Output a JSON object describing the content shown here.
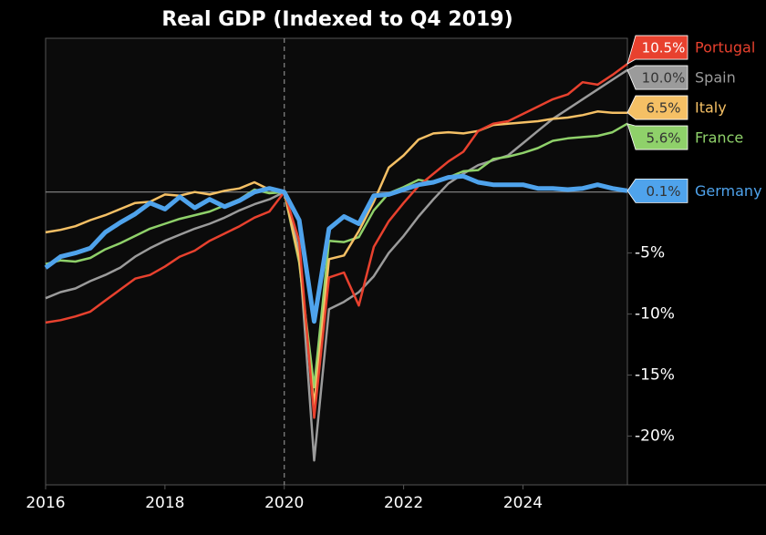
{
  "chart_data": {
    "type": "line",
    "title": "Real GDP (Indexed to Q4 2019)",
    "x": [
      2016,
      2016.25,
      2016.5,
      2016.75,
      2017,
      2017.25,
      2017.5,
      2017.75,
      2018,
      2018.25,
      2018.5,
      2018.75,
      2019,
      2019.25,
      2019.5,
      2019.75,
      2020,
      2020.25,
      2020.5,
      2020.75,
      2021,
      2021.25,
      2021.5,
      2021.75,
      2022,
      2022.25,
      2022.5,
      2022.75,
      2023,
      2023.25,
      2023.5,
      2023.75,
      2024,
      2024.25,
      2024.5,
      2024.75,
      2025,
      2025.25,
      2025.5,
      2025.75
    ],
    "xlim": [
      2016,
      2025.75
    ],
    "xticks": [
      2016,
      2018,
      2020,
      2022,
      2024
    ],
    "ylim": [
      -24,
      12.6
    ],
    "yticks": [
      {
        "value": -5,
        "label": "-5%"
      },
      {
        "value": -10,
        "label": "-10%"
      },
      {
        "value": -15,
        "label": "-15%"
      },
      {
        "value": -20,
        "label": "-20%"
      }
    ],
    "reference_y": 0,
    "reference_x": 2020,
    "series": [
      {
        "name": "Spain",
        "color": "#9b9b9b",
        "end_label": "10.0%",
        "values": [
          -8.7,
          -8.2,
          -7.9,
          -7.3,
          -6.8,
          -6.2,
          -5.3,
          -4.6,
          -4.0,
          -3.5,
          -3.0,
          -2.6,
          -2.1,
          -1.5,
          -1.0,
          -0.6,
          0,
          -4.8,
          -22.0,
          -9.6,
          -9.0,
          -8.2,
          -6.9,
          -5.0,
          -3.6,
          -2.0,
          -0.6,
          0.7,
          1.5,
          2.2,
          2.6,
          3.0,
          4.0,
          5.0,
          6.0,
          6.8,
          7.6,
          8.4,
          9.2,
          10.0
        ]
      },
      {
        "name": "France",
        "color": "#8fd16a",
        "end_label": "5.6%",
        "values": [
          -5.9,
          -5.6,
          -5.7,
          -5.4,
          -4.7,
          -4.2,
          -3.6,
          -3.0,
          -2.6,
          -2.2,
          -1.9,
          -1.6,
          -1.1,
          -0.6,
          0.2,
          -0.1,
          0,
          -5.8,
          -16.0,
          -4.0,
          -4.1,
          -3.7,
          -1.5,
          -0.1,
          0.4,
          1.0,
          0.8,
          1.2,
          1.7,
          1.8,
          2.7,
          2.9,
          3.2,
          3.6,
          4.2,
          4.4,
          4.5,
          4.6,
          4.9,
          5.6
        ]
      },
      {
        "name": "Italy",
        "color": "#f5c065",
        "end_label": "6.5%",
        "values": [
          -3.3,
          -3.1,
          -2.8,
          -2.3,
          -1.9,
          -1.4,
          -0.9,
          -0.8,
          -0.2,
          -0.3,
          0.0,
          -0.2,
          0.1,
          0.3,
          0.8,
          0.2,
          0,
          -5.5,
          -17.5,
          -5.5,
          -5.2,
          -3.2,
          -0.8,
          2.0,
          3.0,
          4.3,
          4.8,
          4.9,
          4.8,
          5.0,
          5.5,
          5.6,
          5.7,
          5.8,
          6.0,
          6.1,
          6.3,
          6.6,
          6.5,
          6.5
        ]
      },
      {
        "name": "Portugal",
        "color": "#e8412e",
        "end_label": "10.5%",
        "values": [
          -10.7,
          -10.5,
          -10.2,
          -9.8,
          -8.9,
          -8.0,
          -7.1,
          -6.8,
          -6.1,
          -5.3,
          -4.8,
          -4.0,
          -3.4,
          -2.8,
          -2.1,
          -1.6,
          0,
          -4.0,
          -18.5,
          -7.0,
          -6.6,
          -9.3,
          -4.5,
          -2.4,
          -0.9,
          0.5,
          1.5,
          2.5,
          3.3,
          5.0,
          5.6,
          5.8,
          6.4,
          7.0,
          7.6,
          8.0,
          9.0,
          8.8,
          9.6,
          10.5
        ]
      },
      {
        "name": "Germany",
        "color": "#4fa3ec",
        "end_label": "0.1%",
        "values": [
          -6.2,
          -5.3,
          -5.0,
          -4.6,
          -3.3,
          -2.5,
          -1.8,
          -0.9,
          -1.4,
          -0.4,
          -1.3,
          -0.6,
          -1.2,
          -0.7,
          0.0,
          0.3,
          0,
          -2.3,
          -10.6,
          -3.0,
          -2.0,
          -2.6,
          -0.3,
          -0.2,
          0.2,
          0.6,
          0.8,
          1.2,
          1.3,
          0.8,
          0.6,
          0.6,
          0.6,
          0.3,
          0.3,
          0.2,
          0.3,
          0.6,
          0.3,
          0.1
        ]
      }
    ]
  }
}
